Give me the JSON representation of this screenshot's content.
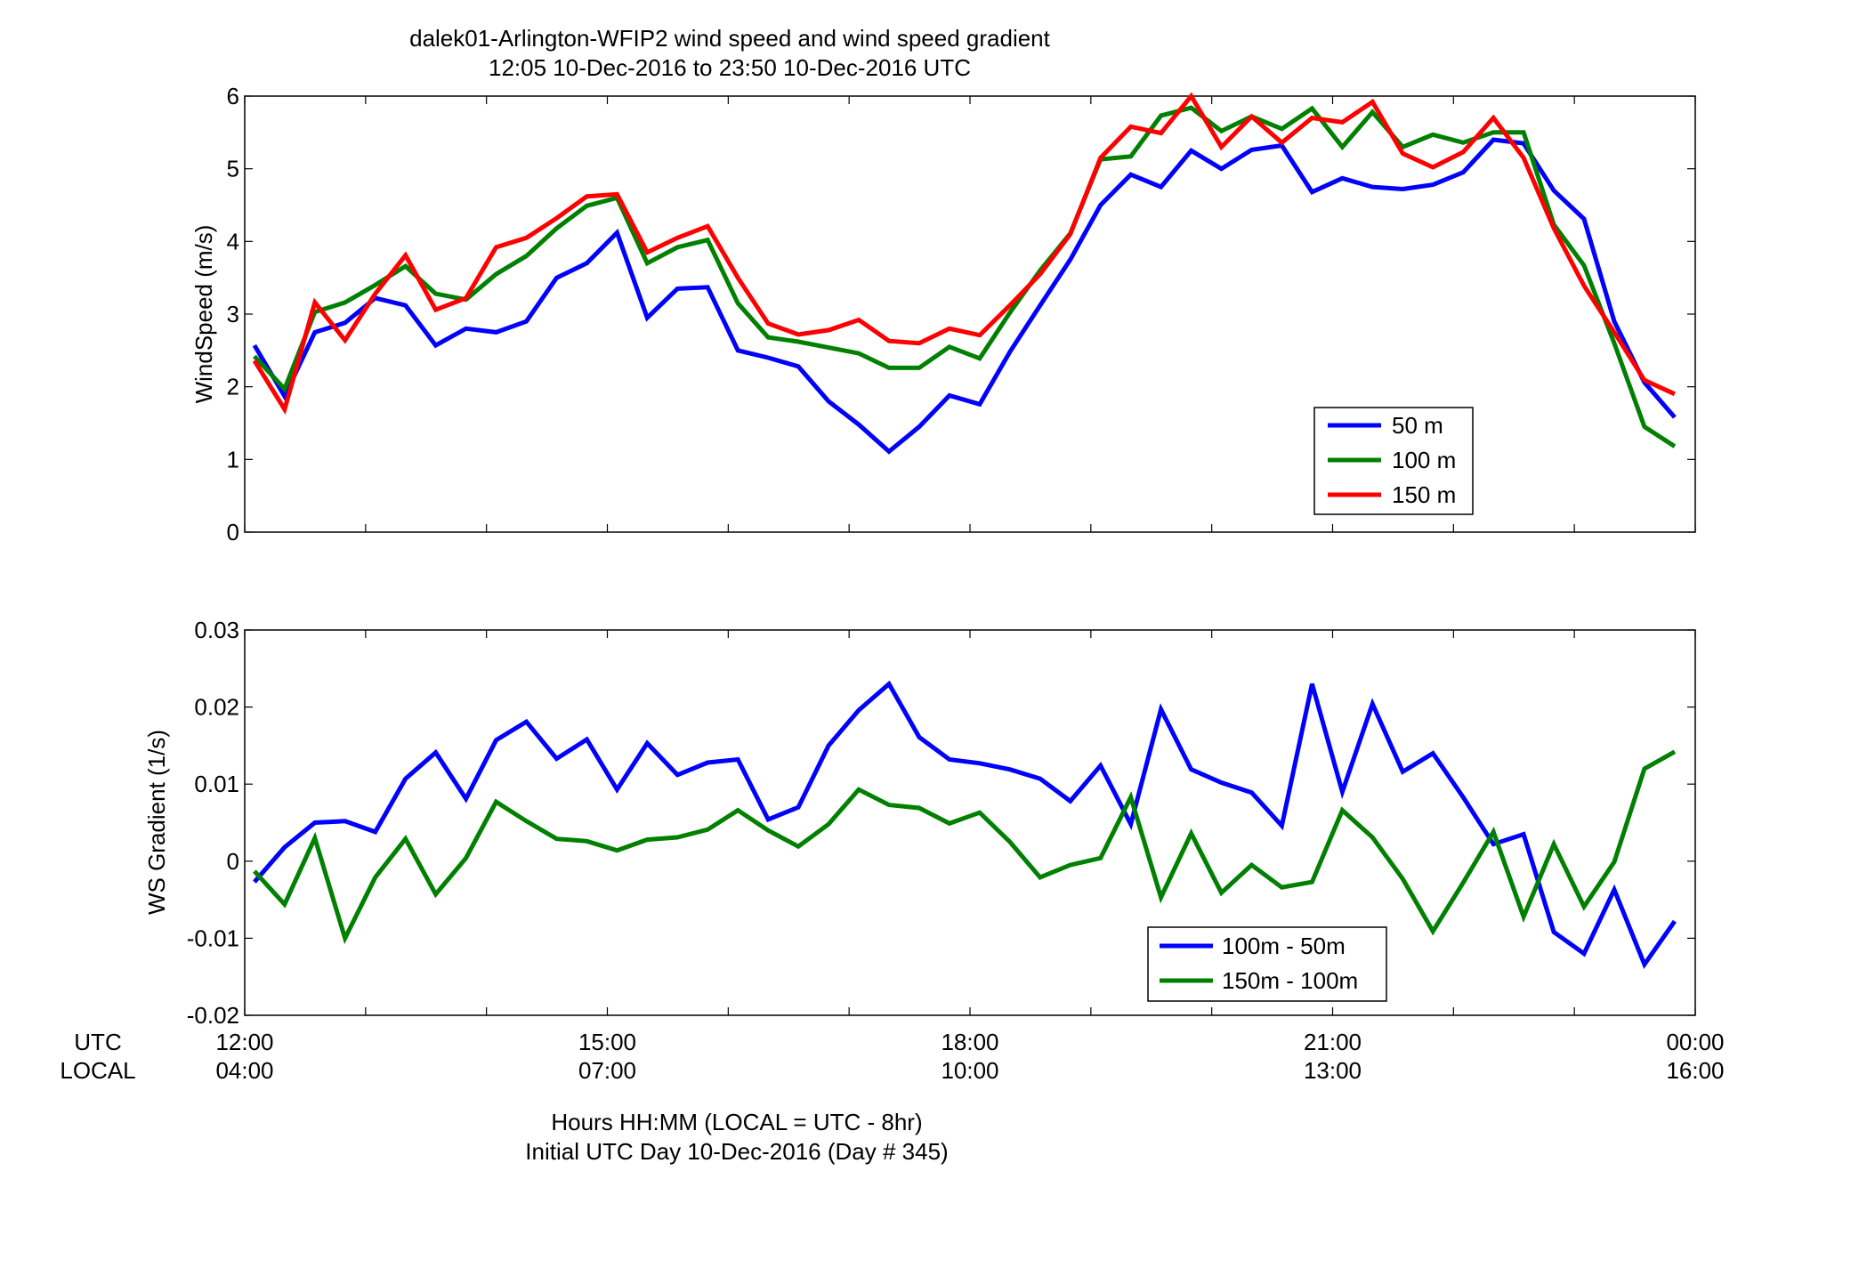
{
  "figure": {
    "title_line1": "dalek01-Arlington-WFIP2  wind speed and wind speed gradient",
    "title_line2": "12:05 10-Dec-2016 to 23:50 10-Dec-2016  UTC",
    "xlabel_line1": "Hours HH:MM  (LOCAL = UTC - 8hr)",
    "xlabel_line2": "Initial UTC Day 10-Dec-2016 (Day # 345)",
    "row_label_utc": "UTC",
    "row_label_local": "LOCAL"
  },
  "chart_data": [
    {
      "type": "line",
      "ylabel": "WindSpeed (m/s)",
      "ylim": [
        0,
        6
      ],
      "yticks": [
        "0",
        "1",
        "2",
        "3",
        "4",
        "5",
        "6"
      ],
      "xlim": [
        12.0,
        24.0
      ],
      "xticks_utc": [
        "12:00",
        "15:00",
        "18:00",
        "21:00",
        "00:00"
      ],
      "xticks_local": [
        "04:00",
        "07:00",
        "10:00",
        "13:00",
        "16:00"
      ],
      "legend_position": "lower-right",
      "x": [
        12.08,
        12.33,
        12.58,
        12.83,
        13.08,
        13.33,
        13.58,
        13.83,
        14.08,
        14.33,
        14.58,
        14.83,
        15.08,
        15.33,
        15.58,
        15.83,
        16.08,
        16.33,
        16.58,
        16.83,
        17.08,
        17.33,
        17.58,
        17.83,
        18.08,
        18.33,
        18.58,
        18.83,
        19.08,
        19.33,
        19.58,
        19.83,
        20.08,
        20.33,
        20.58,
        20.83,
        21.08,
        21.33,
        21.58,
        21.83,
        22.08,
        22.33,
        22.58,
        22.83,
        23.08,
        23.33,
        23.58,
        23.83
      ],
      "series": [
        {
          "name": "50 m",
          "color": "#0000ff",
          "values": [
            2.57,
            1.87,
            2.75,
            2.88,
            3.22,
            3.12,
            2.57,
            2.8,
            2.75,
            2.9,
            3.5,
            3.7,
            4.12,
            2.95,
            3.35,
            3.37,
            2.5,
            2.4,
            2.28,
            1.8,
            1.48,
            1.11,
            1.45,
            1.88,
            1.76,
            2.48,
            3.12,
            3.75,
            4.5,
            4.92,
            4.75,
            5.25,
            5.0,
            5.26,
            5.32,
            4.68,
            4.87,
            4.75,
            4.72,
            4.78,
            4.95,
            5.4,
            5.35,
            4.7,
            4.31,
            2.9,
            2.06,
            1.58
          ]
        },
        {
          "name": "100 m",
          "color": "#008000",
          "values": [
            2.42,
            1.97,
            3.03,
            3.16,
            3.4,
            3.66,
            3.28,
            3.2,
            3.55,
            3.8,
            4.18,
            4.49,
            4.6,
            3.7,
            3.92,
            4.02,
            3.15,
            2.68,
            2.62,
            2.54,
            2.46,
            2.26,
            2.26,
            2.55,
            2.39,
            3.02,
            3.6,
            4.11,
            5.13,
            5.17,
            5.73,
            5.84,
            5.52,
            5.72,
            5.55,
            5.83,
            5.3,
            5.78,
            5.3,
            5.47,
            5.36,
            5.5,
            5.5,
            4.23,
            3.67,
            2.6,
            1.45,
            1.18
          ]
        },
        {
          "name": "150 m",
          "color": "#ff0000",
          "values": [
            2.36,
            1.69,
            3.16,
            2.64,
            3.28,
            3.81,
            3.06,
            3.22,
            3.92,
            4.05,
            4.32,
            4.62,
            4.65,
            3.85,
            4.05,
            4.21,
            3.5,
            2.87,
            2.72,
            2.78,
            2.92,
            2.63,
            2.6,
            2.8,
            2.71,
            3.12,
            3.55,
            4.1,
            5.15,
            5.58,
            5.49,
            6.0,
            5.3,
            5.72,
            5.36,
            5.7,
            5.64,
            5.92,
            5.21,
            5.02,
            5.23,
            5.7,
            5.15,
            4.18,
            3.39,
            2.75,
            2.09,
            1.9
          ]
        }
      ]
    },
    {
      "type": "line",
      "ylabel": "WS Gradient (1/s)",
      "ylim": [
        -0.02,
        0.03
      ],
      "yticks": [
        "-0.02",
        "-0.01",
        "0",
        "0.01",
        "0.02",
        "0.03"
      ],
      "xlim": [
        12.0,
        24.0
      ],
      "legend_position": "lower-right",
      "x": [
        12.08,
        12.33,
        12.58,
        12.83,
        13.08,
        13.33,
        13.58,
        13.83,
        14.08,
        14.33,
        14.58,
        14.83,
        15.08,
        15.33,
        15.58,
        15.83,
        16.08,
        16.33,
        16.58,
        16.83,
        17.08,
        17.33,
        17.58,
        17.83,
        18.08,
        18.33,
        18.58,
        18.83,
        19.08,
        19.33,
        19.58,
        19.83,
        20.08,
        20.33,
        20.58,
        20.83,
        21.08,
        21.33,
        21.58,
        21.83,
        22.08,
        22.33,
        22.58,
        22.83,
        23.08,
        23.33,
        23.58,
        23.83
      ],
      "series": [
        {
          "name": "100m - 50m",
          "color": "#0000ff",
          "values": [
            -0.0027,
            0.0018,
            0.005,
            0.0052,
            0.0038,
            0.0107,
            0.0141,
            0.0081,
            0.0157,
            0.0181,
            0.0133,
            0.0158,
            0.0093,
            0.0153,
            0.0112,
            0.0128,
            0.0132,
            0.0054,
            0.007,
            0.015,
            0.0196,
            0.023,
            0.0161,
            0.0132,
            0.0127,
            0.0119,
            0.0107,
            0.0078,
            0.0124,
            0.0048,
            0.0197,
            0.0119,
            0.0102,
            0.0089,
            0.0046,
            0.023,
            0.009,
            0.0204,
            0.0116,
            0.014,
            0.0083,
            0.0022,
            0.0035,
            -0.0092,
            -0.012,
            -0.0037,
            -0.0134,
            -0.0078
          ]
        },
        {
          "name": "150m - 100m",
          "color": "#008000",
          "values": [
            -0.0013,
            -0.0056,
            0.003,
            -0.01,
            -0.0021,
            0.0029,
            -0.0043,
            0.0004,
            0.0077,
            0.0052,
            0.0029,
            0.0026,
            0.0014,
            0.0028,
            0.0031,
            0.0041,
            0.0066,
            0.004,
            0.0019,
            0.0048,
            0.0093,
            0.0073,
            0.0069,
            0.0049,
            0.0063,
            0.0025,
            -0.0021,
            -0.0005,
            0.0004,
            0.0083,
            -0.0047,
            0.0036,
            -0.0041,
            -0.0005,
            -0.0034,
            -0.0027,
            0.0066,
            0.0031,
            -0.0023,
            -0.0091,
            -0.0028,
            0.0038,
            -0.0072,
            0.0022,
            -0.0059,
            -0.0001,
            0.012,
            0.0142
          ]
        }
      ]
    }
  ]
}
